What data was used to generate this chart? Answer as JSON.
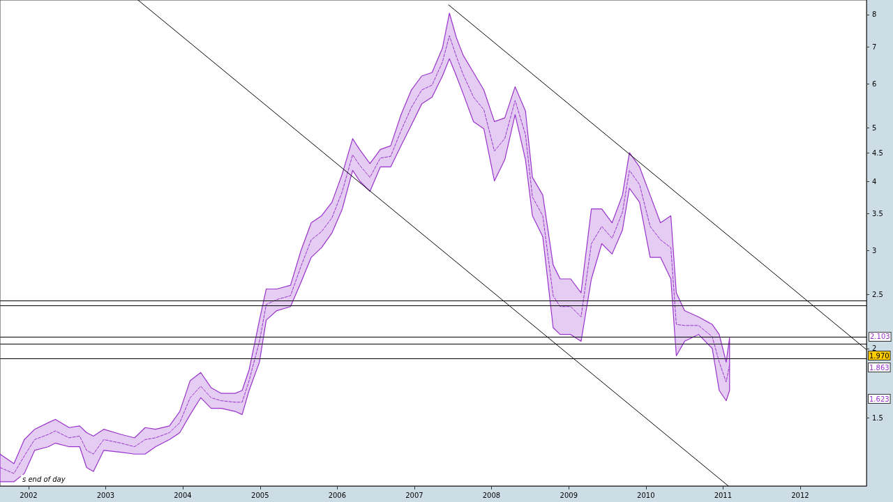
{
  "chart_data": {
    "type": "line",
    "x": [
      "2001-08-19",
      "2001-10-24",
      "2001-12-12",
      "2002-01-30",
      "2002-04-05",
      "2002-05-08",
      "2002-07-12",
      "2002-08-31",
      "2002-10-03",
      "2002-11-04",
      "2002-12-23",
      "2003-03-14",
      "2003-05-18",
      "2003-07-07",
      "2003-08-25",
      "2003-10-30",
      "2003-12-18",
      "2004-02-05",
      "2004-03-26",
      "2004-05-14",
      "2004-07-01",
      "2004-09-05",
      "2004-10-08",
      "2004-11-10",
      "2004-12-29",
      "2005-01-30",
      "2005-03-21",
      "2005-05-25",
      "2005-07-13",
      "2005-08-31",
      "2005-10-19",
      "2005-12-07",
      "2006-01-25",
      "2006-03-15",
      "2006-04-17",
      "2006-06-05",
      "2006-07-24",
      "2006-09-11",
      "2006-10-30",
      "2006-12-18",
      "2007-02-05",
      "2007-03-26",
      "2007-05-14",
      "2007-06-16",
      "2007-07-19",
      "2007-08-20",
      "2007-10-08",
      "2007-11-26",
      "2008-01-15",
      "2008-03-04",
      "2008-04-22",
      "2008-06-10",
      "2008-07-13",
      "2008-08-31",
      "2008-10-19",
      "2008-11-21",
      "2009-01-10",
      "2009-02-28",
      "2009-04-18",
      "2009-06-06",
      "2009-07-25",
      "2009-09-12",
      "2009-10-15",
      "2009-12-02",
      "2010-01-21",
      "2010-03-11",
      "2010-04-29",
      "2010-05-25",
      "2010-07-03",
      "2010-09-07",
      "2010-11-11",
      "2010-12-14",
      "2011-01-16",
      "2011-02-01"
    ],
    "series": [
      {
        "color": "#9933cc",
        "line_style": "dashed",
        "values": [
          1.22,
          1.19,
          1.28,
          1.37,
          1.4,
          1.42,
          1.38,
          1.39,
          1.31,
          1.29,
          1.37,
          1.35,
          1.33,
          1.37,
          1.38,
          1.41,
          1.47,
          1.63,
          1.71,
          1.63,
          1.61,
          1.6,
          1.6,
          1.75,
          2.06,
          2.4,
          2.45,
          2.49,
          2.81,
          3.14,
          3.25,
          3.44,
          3.84,
          4.47,
          4.28,
          4.07,
          4.41,
          4.44,
          4.94,
          5.44,
          5.85,
          5.97,
          6.57,
          7.33,
          6.72,
          6.24,
          5.68,
          5.39,
          4.54,
          4.78,
          5.6,
          4.86,
          3.75,
          3.47,
          2.49,
          2.38,
          2.38,
          2.28,
          3.09,
          3.32,
          3.16,
          3.52,
          4.19,
          3.95,
          3.32,
          3.14,
          3.04,
          2.21,
          2.2,
          2.2,
          2.1,
          1.89,
          1.74,
          1.87
        ],
        "lower": [
          1.15,
          1.15,
          1.19,
          1.31,
          1.33,
          1.35,
          1.33,
          1.33,
          1.22,
          1.2,
          1.31,
          1.3,
          1.29,
          1.29,
          1.33,
          1.37,
          1.41,
          1.52,
          1.63,
          1.56,
          1.56,
          1.54,
          1.52,
          1.68,
          1.89,
          2.25,
          2.34,
          2.38,
          2.63,
          2.92,
          3.04,
          3.23,
          3.57,
          4.19,
          4.01,
          3.84,
          4.25,
          4.25,
          4.64,
          5.06,
          5.52,
          5.68,
          6.2,
          6.66,
          6.2,
          5.76,
          5.13,
          4.98,
          4.01,
          4.38,
          5.28,
          4.38,
          3.47,
          3.18,
          2.18,
          2.12,
          2.12,
          2.06,
          2.67,
          3.09,
          2.96,
          3.27,
          3.89,
          3.67,
          2.92,
          2.92,
          2.67,
          1.94,
          2.06,
          2.12,
          2.0,
          1.68,
          1.61,
          1.68
        ],
        "upper": [
          1.29,
          1.24,
          1.37,
          1.43,
          1.47,
          1.49,
          1.44,
          1.45,
          1.41,
          1.39,
          1.43,
          1.4,
          1.38,
          1.44,
          1.43,
          1.45,
          1.54,
          1.75,
          1.81,
          1.7,
          1.66,
          1.66,
          1.68,
          1.83,
          2.25,
          2.56,
          2.56,
          2.6,
          3.0,
          3.37,
          3.47,
          3.67,
          4.13,
          4.78,
          4.57,
          4.31,
          4.57,
          4.64,
          5.28,
          5.85,
          6.2,
          6.29,
          6.96,
          8.05,
          7.27,
          6.76,
          6.29,
          5.85,
          5.13,
          5.21,
          5.93,
          5.36,
          4.07,
          3.78,
          2.83,
          2.67,
          2.67,
          2.52,
          3.57,
          3.57,
          3.37,
          3.78,
          4.51,
          4.25,
          3.78,
          3.37,
          3.47,
          2.52,
          2.34,
          2.28,
          2.21,
          2.12,
          1.89,
          2.09
        ]
      },
      {
        "type": "line",
        "color": "#000000",
        "line_style": "solid",
        "x": [
          "2003-06-03",
          "2011-01-26"
        ],
        "values": [
          8.5,
          1.13
        ]
      },
      {
        "type": "line",
        "color": "#000000",
        "line_style": "solid",
        "x": [
          "2007-06-12",
          "2012-11-10"
        ],
        "values": [
          8.33,
          1.99
        ]
      }
    ],
    "xlim": [
      "2001-08-19",
      "2012-11-10"
    ],
    "xticks": [
      {
        "value": "2002",
        "label": "2002"
      },
      {
        "value": "2003",
        "label": "2003"
      },
      {
        "value": "2004",
        "label": "2004"
      },
      {
        "value": "2005",
        "label": "2005"
      },
      {
        "value": "2006",
        "label": "2006"
      },
      {
        "value": "2007",
        "label": "2007"
      },
      {
        "value": "2008",
        "label": "2008"
      },
      {
        "value": "2009",
        "label": "2009"
      },
      {
        "value": "2010",
        "label": "2010"
      },
      {
        "value": "2011",
        "label": "2011"
      },
      {
        "value": "2012",
        "label": "2012"
      }
    ],
    "ylim": [
      1.13,
      8.5
    ],
    "yticks": [
      1.5,
      2,
      2.5,
      3,
      3.5,
      4,
      4.5,
      5,
      6,
      7,
      8
    ],
    "log": "y",
    "grid": false,
    "marker": "none",
    "ref_lines": [
      {
        "axis": "y",
        "value": 2.435,
        "color": "#000000"
      },
      {
        "axis": "y",
        "value": 2.39,
        "color": "#000000"
      },
      {
        "axis": "y",
        "value": 2.103,
        "label": "2.103",
        "color": "#000000"
      },
      {
        "axis": "y",
        "value": 2.04,
        "color": "#000000"
      },
      {
        "axis": "y",
        "value": 1.92,
        "color": "#000000"
      }
    ],
    "annotations": [
      "1.970",
      "1.863",
      "1.623",
      "s end of day"
    ]
  }
}
